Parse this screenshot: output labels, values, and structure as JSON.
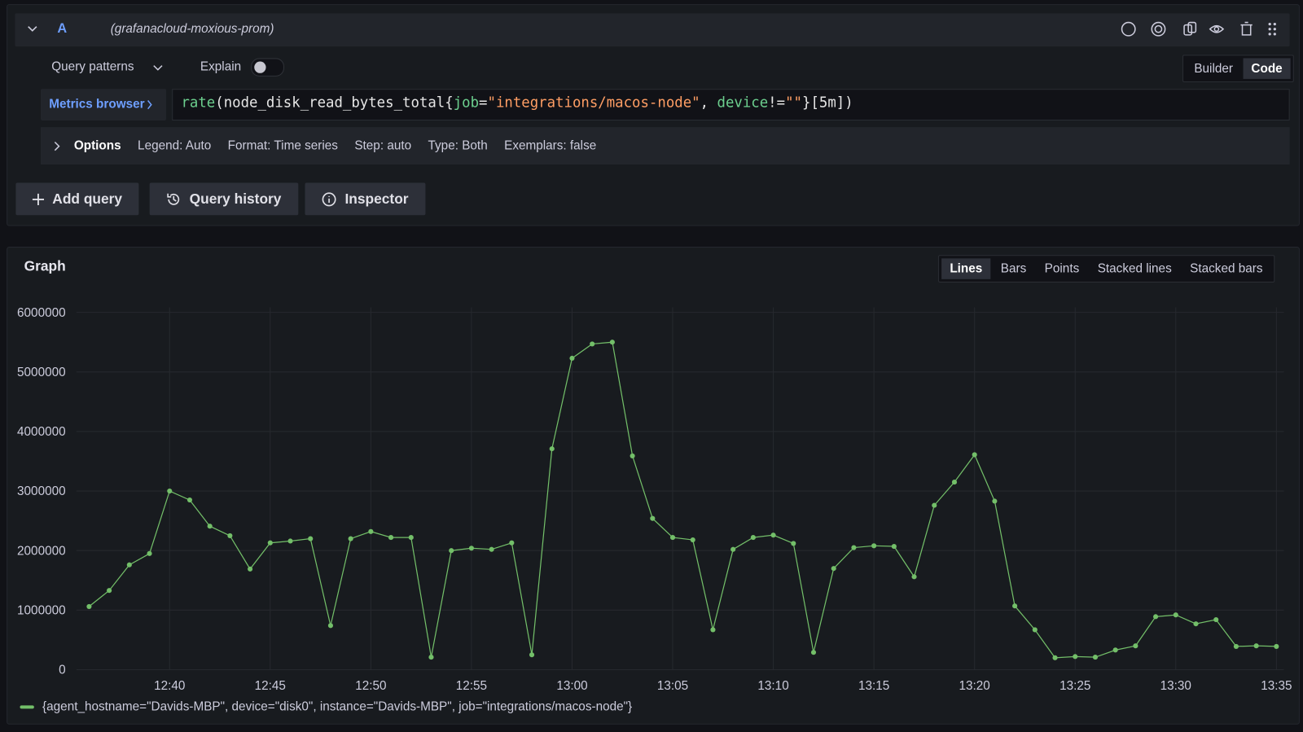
{
  "query": {
    "ref": "A",
    "datasource": "(grafanacloud-moxious-prom)",
    "patterns": "Query patterns",
    "explain": "Explain",
    "modes": [
      "Builder",
      "Code"
    ],
    "metrics_browser": "Metrics browser",
    "expression": [
      {
        "text": "rate",
        "color": "#6ccf8e"
      },
      {
        "text": "(",
        "color": "#e6e6e6"
      },
      {
        "text": "node_disk_read_bytes_total",
        "color": "#e6e6e6"
      },
      {
        "text": "{",
        "color": "#e6e6e6"
      },
      {
        "text": "job",
        "color": "#6ccf8e"
      },
      {
        "text": "=",
        "color": "#e6e6e6"
      },
      {
        "text": "\"integrations/macos-node\"",
        "color": "#ff9e64"
      },
      {
        "text": ", ",
        "color": "#e6e6e6"
      },
      {
        "text": "device",
        "color": "#6ccf8e"
      },
      {
        "text": "!=",
        "color": "#e6e6e6"
      },
      {
        "text": "\"\"",
        "color": "#ff9e64"
      },
      {
        "text": "}",
        "color": "#e6e6e6"
      },
      {
        "text": "[5m]",
        "color": "#e6e6e6"
      },
      {
        "text": ")",
        "color": "#e6e6e6"
      }
    ],
    "options": {
      "label": "Options",
      "items": [
        "Legend: Auto",
        "Format: Time series",
        "Step: auto",
        "Type: Both",
        "Exemplars: false"
      ]
    }
  },
  "actions": [
    "Add query",
    "Query history",
    "Inspector"
  ],
  "graph": {
    "views": [
      "Lines",
      "Bars",
      "Points",
      "Stacked lines",
      "Stacked bars"
    ]
  },
  "chart_data": {
    "type": "line",
    "title": "Graph",
    "x": [
      "12:36",
      "12:37",
      "12:38",
      "12:39",
      "12:40",
      "12:41",
      "12:42",
      "12:43",
      "12:44",
      "12:45",
      "12:46",
      "12:47",
      "12:48",
      "12:49",
      "12:50",
      "12:51",
      "12:52",
      "12:53",
      "12:54",
      "12:55",
      "12:56",
      "12:57",
      "12:58",
      "12:59",
      "13:00",
      "13:01",
      "13:02",
      "13:03",
      "13:04",
      "13:05",
      "13:06",
      "13:07",
      "13:08",
      "13:09",
      "13:10",
      "13:11",
      "13:12",
      "13:13",
      "13:14",
      "13:15",
      "13:16",
      "13:17",
      "13:18",
      "13:19",
      "13:20",
      "13:21",
      "13:22",
      "13:23",
      "13:24",
      "13:25",
      "13:26",
      "13:27",
      "13:28",
      "13:29",
      "13:30",
      "13:31",
      "13:32",
      "13:33",
      "13:34",
      "13:35"
    ],
    "series": [
      {
        "name": "{agent_hostname=\"Davids-MBP\", device=\"disk0\", instance=\"Davids-MBP\", job=\"integrations/macos-node\"}",
        "color": "#73bf69",
        "values": [
          1060000,
          1330000,
          1760000,
          1950000,
          3000000,
          2850000,
          2410000,
          2250000,
          1690000,
          2130000,
          2160000,
          2200000,
          740000,
          2200000,
          2320000,
          2220000,
          2220000,
          210000,
          2000000,
          2040000,
          2020000,
          2130000,
          250000,
          3710000,
          5230000,
          5470000,
          5500000,
          3590000,
          2540000,
          2220000,
          2180000,
          670000,
          2020000,
          2220000,
          2260000,
          2120000,
          290000,
          1700000,
          2050000,
          2080000,
          2070000,
          1560000,
          2760000,
          3150000,
          3610000,
          2830000,
          1070000,
          670000,
          200000,
          220000,
          210000,
          330000,
          400000,
          890000,
          920000,
          770000,
          840000,
          390000,
          400000,
          390000
        ]
      }
    ],
    "xlim": [
      "12:35",
      "13:35"
    ],
    "xticks": [
      "12:40",
      "12:45",
      "12:50",
      "12:55",
      "13:00",
      "13:05",
      "13:10",
      "13:15",
      "13:20",
      "13:25",
      "13:30",
      "13:35"
    ],
    "ylim": [
      0,
      6000000
    ],
    "yticks": [
      0,
      1000000,
      2000000,
      3000000,
      4000000,
      5000000,
      6000000
    ],
    "grid": true,
    "markers": true
  }
}
